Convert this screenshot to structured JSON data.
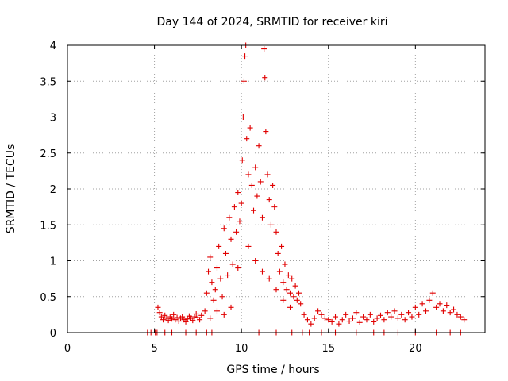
{
  "chart_data": {
    "type": "scatter",
    "title": "Day 144 of 2024, SRMTID for receiver kiri",
    "xlabel": "GPS time / hours",
    "ylabel": "SRMTID / TECUs",
    "xlim": [
      0,
      24
    ],
    "ylim": [
      0,
      4
    ],
    "xticks": [
      "0",
      "5",
      "10",
      "15",
      "20"
    ],
    "yticks": [
      "0",
      "0.5",
      "1",
      "1.5",
      "2",
      "2.5",
      "3",
      "3.5",
      "4"
    ],
    "grid": true,
    "marker": "plus",
    "colors": {
      "series": "#e00000",
      "grid": "#a0a0a0",
      "axis": "#000000"
    },
    "series": [
      {
        "name": "SRMTID",
        "points": [
          [
            4.6,
            0.0
          ],
          [
            4.8,
            0.0
          ],
          [
            5.05,
            0.0
          ],
          [
            5.15,
            0.0
          ],
          [
            5.2,
            0.35
          ],
          [
            5.3,
            0.28
          ],
          [
            5.4,
            0.22
          ],
          [
            5.5,
            0.18
          ],
          [
            5.6,
            0.24
          ],
          [
            5.7,
            0.2
          ],
          [
            5.8,
            0.17
          ],
          [
            5.9,
            0.22
          ],
          [
            6.0,
            0.19
          ],
          [
            6.1,
            0.25
          ],
          [
            6.2,
            0.18
          ],
          [
            6.3,
            0.21
          ],
          [
            6.4,
            0.16
          ],
          [
            6.5,
            0.2
          ],
          [
            6.6,
            0.22
          ],
          [
            6.7,
            0.18
          ],
          [
            6.8,
            0.15
          ],
          [
            6.9,
            0.19
          ],
          [
            7.0,
            0.23
          ],
          [
            7.1,
            0.2
          ],
          [
            7.2,
            0.17
          ],
          [
            7.3,
            0.22
          ],
          [
            7.4,
            0.26
          ],
          [
            7.5,
            0.21
          ],
          [
            7.6,
            0.18
          ],
          [
            7.7,
            0.24
          ],
          [
            5.6,
            0.0
          ],
          [
            6.0,
            0.0
          ],
          [
            6.8,
            0.0
          ],
          [
            7.4,
            0.0
          ],
          [
            7.9,
            0.3
          ],
          [
            8.0,
            0.55
          ],
          [
            8.1,
            0.85
          ],
          [
            8.2,
            1.05
          ],
          [
            8.3,
            0.7
          ],
          [
            8.4,
            0.45
          ],
          [
            8.5,
            0.6
          ],
          [
            8.6,
            0.9
          ],
          [
            8.7,
            1.2
          ],
          [
            8.8,
            0.75
          ],
          [
            8.9,
            0.5
          ],
          [
            9.0,
            1.45
          ],
          [
            9.1,
            1.1
          ],
          [
            9.2,
            0.8
          ],
          [
            9.3,
            1.6
          ],
          [
            9.4,
            1.3
          ],
          [
            9.5,
            0.95
          ],
          [
            9.6,
            1.75
          ],
          [
            9.7,
            1.4
          ],
          [
            9.8,
            1.95
          ],
          [
            9.9,
            1.55
          ],
          [
            10.0,
            1.8
          ],
          [
            10.05,
            2.4
          ],
          [
            10.1,
            3.0
          ],
          [
            10.15,
            3.5
          ],
          [
            10.2,
            3.85
          ],
          [
            10.25,
            4.0
          ],
          [
            10.3,
            2.7
          ],
          [
            10.4,
            2.2
          ],
          [
            10.5,
            2.85
          ],
          [
            10.6,
            2.05
          ],
          [
            10.7,
            1.7
          ],
          [
            10.8,
            2.3
          ],
          [
            10.9,
            1.9
          ],
          [
            11.0,
            2.6
          ],
          [
            11.1,
            2.1
          ],
          [
            11.2,
            1.6
          ],
          [
            11.3,
            3.95
          ],
          [
            11.35,
            3.55
          ],
          [
            11.4,
            2.8
          ],
          [
            11.5,
            2.2
          ],
          [
            11.6,
            1.85
          ],
          [
            11.7,
            1.5
          ],
          [
            11.8,
            2.05
          ],
          [
            11.9,
            1.75
          ],
          [
            12.0,
            1.4
          ],
          [
            12.1,
            1.1
          ],
          [
            12.2,
            0.85
          ],
          [
            12.3,
            1.2
          ],
          [
            12.4,
            0.7
          ],
          [
            12.5,
            0.95
          ],
          [
            12.6,
            0.6
          ],
          [
            12.7,
            0.8
          ],
          [
            12.8,
            0.55
          ],
          [
            12.9,
            0.75
          ],
          [
            13.0,
            0.5
          ],
          [
            13.1,
            0.65
          ],
          [
            13.2,
            0.45
          ],
          [
            13.3,
            0.55
          ],
          [
            13.4,
            0.4
          ],
          [
            8.2,
            0.2
          ],
          [
            8.6,
            0.3
          ],
          [
            9.0,
            0.25
          ],
          [
            9.4,
            0.35
          ],
          [
            9.8,
            0.9
          ],
          [
            10.4,
            1.2
          ],
          [
            10.8,
            1.0
          ],
          [
            11.2,
            0.85
          ],
          [
            11.6,
            0.75
          ],
          [
            12.0,
            0.6
          ],
          [
            12.4,
            0.45
          ],
          [
            12.8,
            0.35
          ],
          [
            8.0,
            0.0
          ],
          [
            8.3,
            0.0
          ],
          [
            11.0,
            0.0
          ],
          [
            12.0,
            0.0
          ],
          [
            12.9,
            0.0
          ],
          [
            13.5,
            0.0
          ],
          [
            13.9,
            0.0
          ],
          [
            13.6,
            0.25
          ],
          [
            13.8,
            0.18
          ],
          [
            14.0,
            0.12
          ],
          [
            14.2,
            0.2
          ],
          [
            14.4,
            0.3
          ],
          [
            14.6,
            0.25
          ],
          [
            14.8,
            0.2
          ],
          [
            15.0,
            0.18
          ],
          [
            15.2,
            0.15
          ],
          [
            15.4,
            0.22
          ],
          [
            15.6,
            0.12
          ],
          [
            15.8,
            0.18
          ],
          [
            16.0,
            0.25
          ],
          [
            16.2,
            0.16
          ],
          [
            16.4,
            0.2
          ],
          [
            16.6,
            0.28
          ],
          [
            16.8,
            0.14
          ],
          [
            17.0,
            0.22
          ],
          [
            17.2,
            0.18
          ],
          [
            17.4,
            0.25
          ],
          [
            17.6,
            0.15
          ],
          [
            17.8,
            0.2
          ],
          [
            18.0,
            0.24
          ],
          [
            18.2,
            0.18
          ],
          [
            18.4,
            0.28
          ],
          [
            18.6,
            0.22
          ],
          [
            18.8,
            0.3
          ],
          [
            19.0,
            0.2
          ],
          [
            19.2,
            0.25
          ],
          [
            19.4,
            0.18
          ],
          [
            19.6,
            0.28
          ],
          [
            19.8,
            0.22
          ],
          [
            20.0,
            0.35
          ],
          [
            20.2,
            0.25
          ],
          [
            20.4,
            0.4
          ],
          [
            20.6,
            0.3
          ],
          [
            20.8,
            0.45
          ],
          [
            21.0,
            0.55
          ],
          [
            21.2,
            0.35
          ],
          [
            21.4,
            0.4
          ],
          [
            21.6,
            0.3
          ],
          [
            21.8,
            0.38
          ],
          [
            22.0,
            0.28
          ],
          [
            22.2,
            0.32
          ],
          [
            22.4,
            0.25
          ],
          [
            22.6,
            0.22
          ],
          [
            22.8,
            0.18
          ],
          [
            14.6,
            0.0
          ],
          [
            15.4,
            0.0
          ],
          [
            16.6,
            0.0
          ],
          [
            17.6,
            0.0
          ],
          [
            18.2,
            0.0
          ],
          [
            19.0,
            0.0
          ],
          [
            20.0,
            0.0
          ],
          [
            21.2,
            0.0
          ],
          [
            22.0,
            0.0
          ],
          [
            22.6,
            0.0
          ]
        ]
      }
    ]
  }
}
